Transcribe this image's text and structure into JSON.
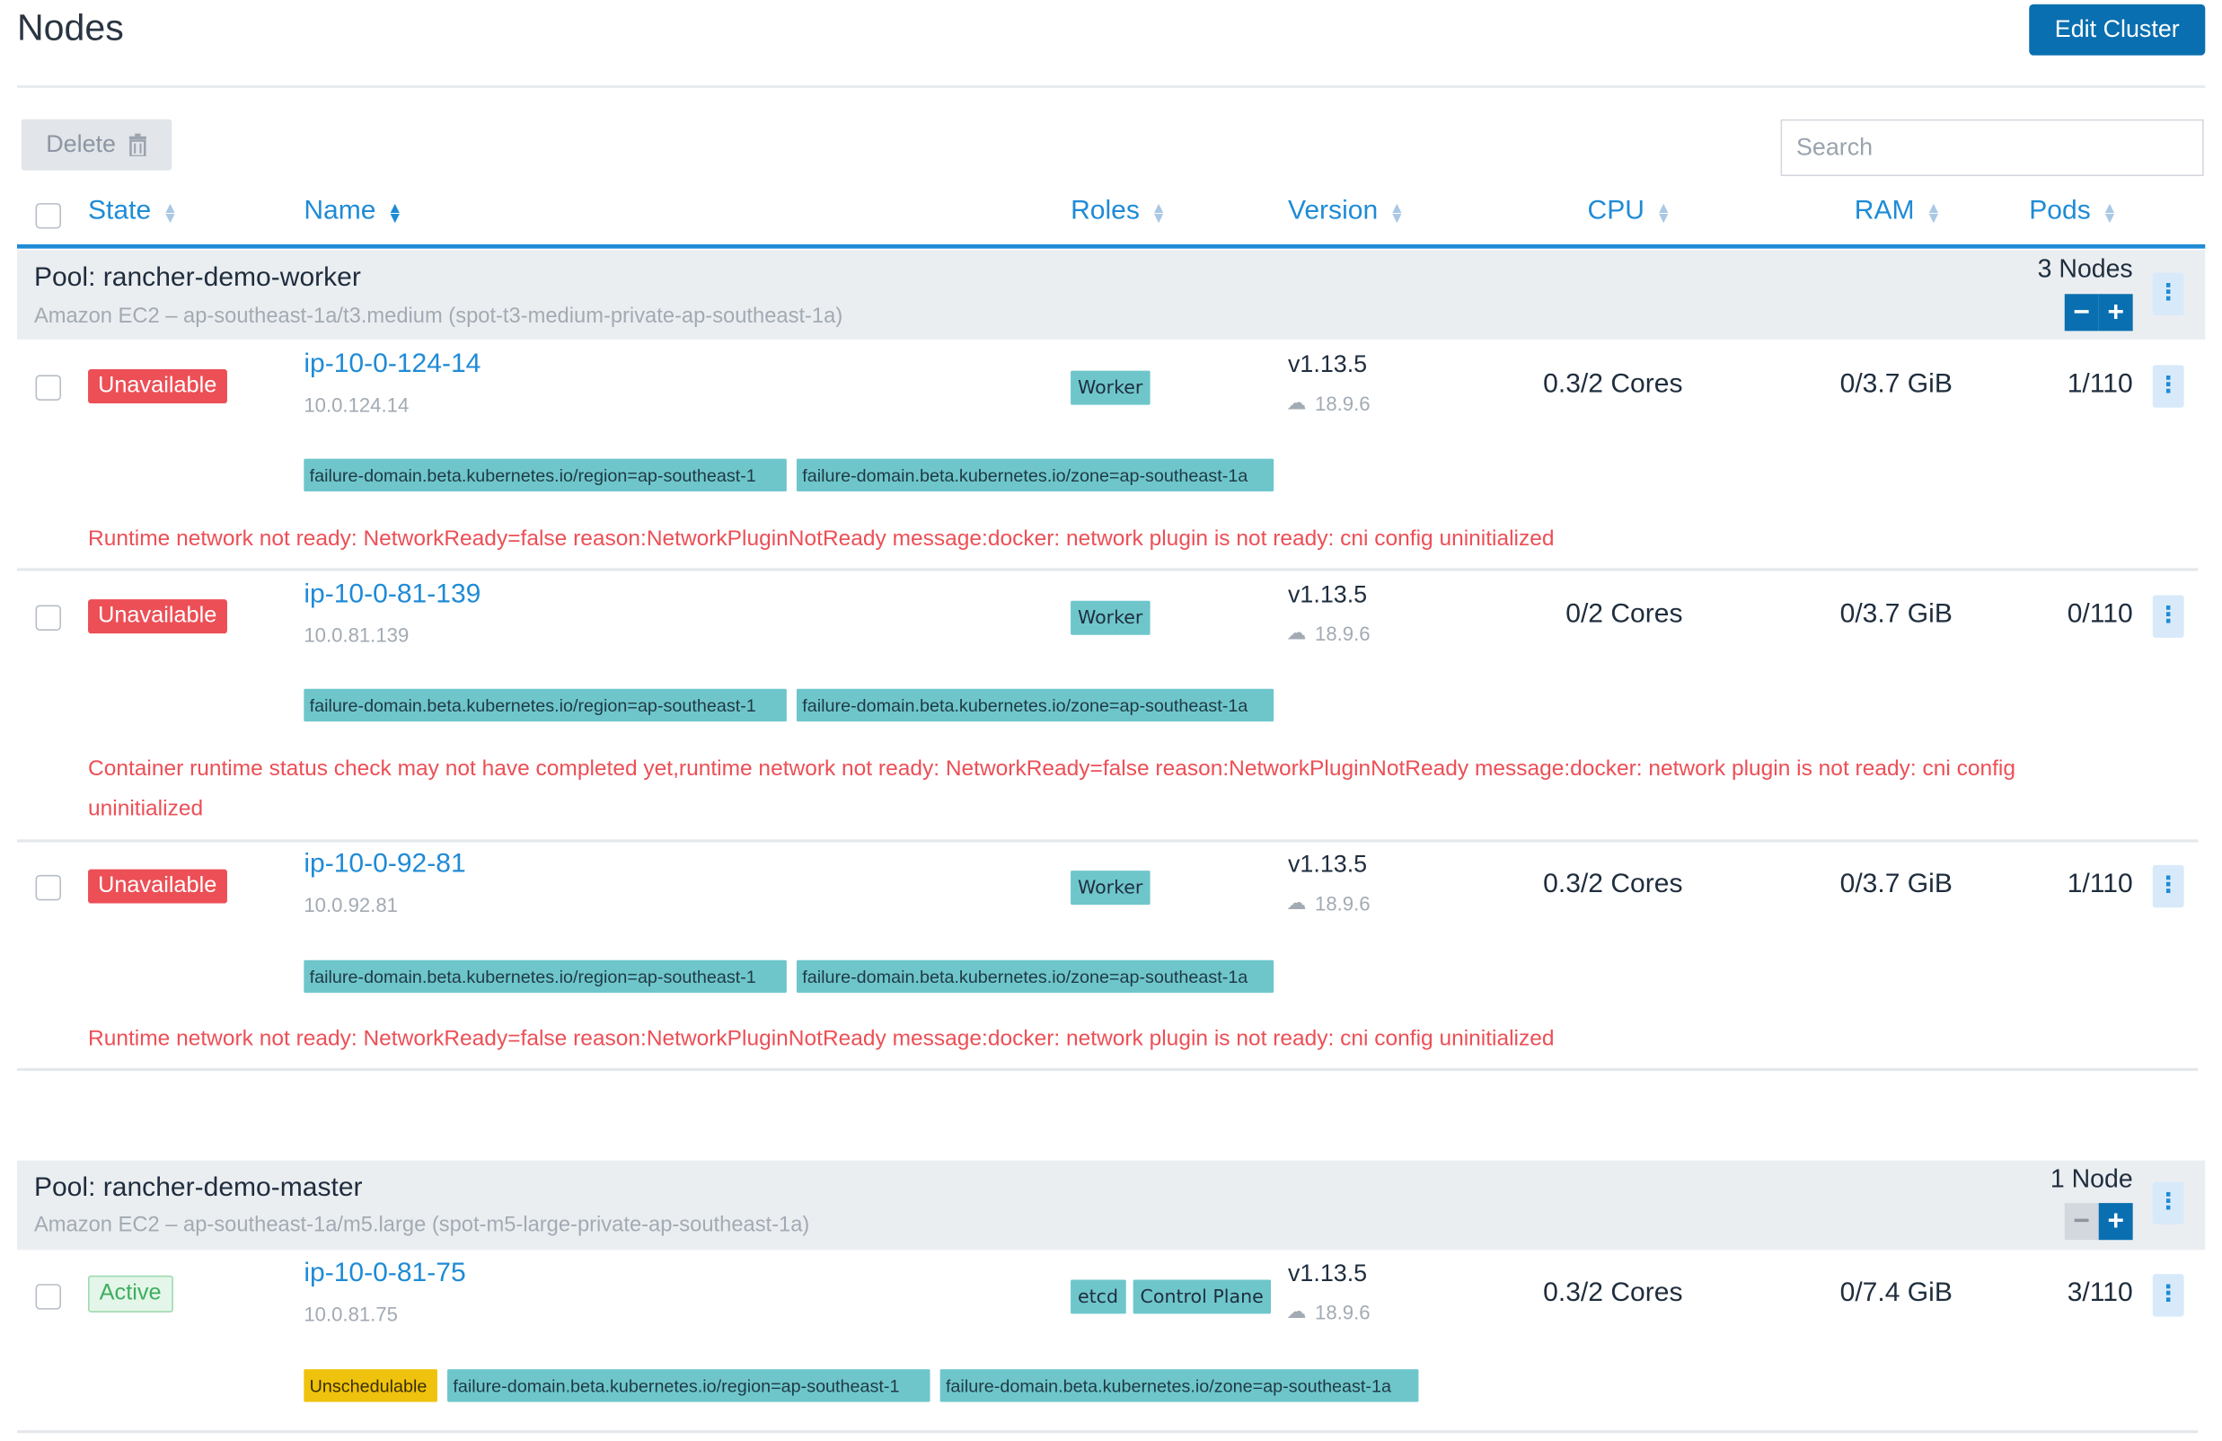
{
  "page": {
    "title": "Nodes",
    "edit_cluster_label": "Edit Cluster"
  },
  "toolbar": {
    "delete_label": "Delete",
    "search_placeholder": "Search"
  },
  "columns": {
    "state": "State",
    "name": "Name",
    "roles": "Roles",
    "version": "Version",
    "cpu": "CPU",
    "ram": "RAM",
    "pods": "Pods"
  },
  "pools": [
    {
      "name": "Pool: rancher-demo-worker",
      "desc": "Amazon EC2 – ap-southeast-1a/t3.medium (spot-t3-medium-private-ap-southeast-1a)",
      "count": "3 Nodes",
      "nodes": [
        {
          "state": "Unavailable",
          "name": "ip-10-0-124-14",
          "ip": "10.0.124.14",
          "roles": [
            "Worker"
          ],
          "version": "v1.13.5",
          "docker": "18.9.6",
          "cpu": "0.3/2 Cores",
          "ram": "0/3.7 GiB",
          "pods": "1/110",
          "labels": [
            "failure-domain.beta.kubernetes.io/region=ap-southeast-1",
            "failure-domain.beta.kubernetes.io/zone=ap-southeast-1a"
          ],
          "error": "Runtime network not ready: NetworkReady=false reason:NetworkPluginNotReady message:docker: network plugin is not ready: cni config uninitialized"
        },
        {
          "state": "Unavailable",
          "name": "ip-10-0-81-139",
          "ip": "10.0.81.139",
          "roles": [
            "Worker"
          ],
          "version": "v1.13.5",
          "docker": "18.9.6",
          "cpu": "0/2 Cores",
          "ram": "0/3.7 GiB",
          "pods": "0/110",
          "labels": [
            "failure-domain.beta.kubernetes.io/region=ap-southeast-1",
            "failure-domain.beta.kubernetes.io/zone=ap-southeast-1a"
          ],
          "error": "Container runtime status check may not have completed yet,runtime network not ready: NetworkReady=false reason:NetworkPluginNotReady message:docker: network plugin is not ready: cni config uninitialized"
        },
        {
          "state": "Unavailable",
          "name": "ip-10-0-92-81",
          "ip": "10.0.92.81",
          "roles": [
            "Worker"
          ],
          "version": "v1.13.5",
          "docker": "18.9.6",
          "cpu": "0.3/2 Cores",
          "ram": "0/3.7 GiB",
          "pods": "1/110",
          "labels": [
            "failure-domain.beta.kubernetes.io/region=ap-southeast-1",
            "failure-domain.beta.kubernetes.io/zone=ap-southeast-1a"
          ],
          "error": "Runtime network not ready: NetworkReady=false reason:NetworkPluginNotReady message:docker: network plugin is not ready: cni config uninitialized"
        }
      ]
    },
    {
      "name": "Pool: rancher-demo-master",
      "desc": "Amazon EC2 – ap-southeast-1a/m5.large (spot-m5-large-private-ap-southeast-1a)",
      "count": "1 Node",
      "nodes": [
        {
          "state": "Active",
          "name": "ip-10-0-81-75",
          "ip": "10.0.81.75",
          "roles": [
            "etcd",
            "Control Plane"
          ],
          "version": "v1.13.5",
          "docker": "18.9.6",
          "cpu": "0.3/2 Cores",
          "ram": "0/7.4 GiB",
          "pods": "3/110",
          "unschedulable": "Unschedulable",
          "labels": [
            "failure-domain.beta.kubernetes.io/region=ap-southeast-1",
            "failure-domain.beta.kubernetes.io/zone=ap-southeast-1a"
          ]
        }
      ]
    }
  ],
  "icons": {
    "trash": "trash-icon",
    "kebab": "kebab-menu-icon",
    "docker": "docker-icon",
    "sort": "sort-icon"
  },
  "colors": {
    "primary": "#0a6fb0",
    "link": "#1f8bd6",
    "error": "#ec4f56",
    "label": "#6ec6cb",
    "active": "#3eae5f",
    "warn": "#efc20e"
  }
}
